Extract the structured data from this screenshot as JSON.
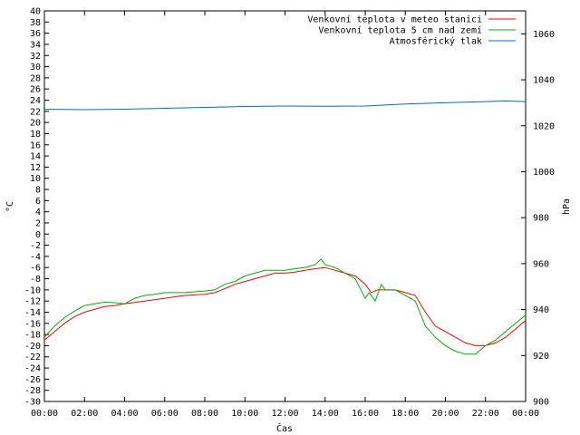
{
  "chart_data": {
    "type": "line",
    "title": "",
    "xlabel": "Čas",
    "ylabel_left": "°C",
    "ylabel_right": "hPa",
    "x_ticks": [
      "00:00",
      "02:00",
      "04:00",
      "06:00",
      "08:00",
      "10:00",
      "12:00",
      "14:00",
      "16:00",
      "18:00",
      "20:00",
      "22:00",
      "00:00"
    ],
    "xlim": [
      0,
      24
    ],
    "ylim_left": [
      -30,
      40
    ],
    "ylim_right": [
      900,
      1070
    ],
    "y_ticks_left": [
      40,
      38,
      36,
      34,
      32,
      30,
      28,
      26,
      24,
      22,
      20,
      18,
      16,
      14,
      12,
      10,
      8,
      6,
      4,
      2,
      0,
      -2,
      -4,
      -6,
      -8,
      -10,
      -12,
      -14,
      -16,
      -18,
      -20,
      -22,
      -24,
      -26,
      -28,
      -30
    ],
    "y_ticks_right": [
      1060,
      1040,
      1020,
      1000,
      980,
      960,
      940,
      920,
      900
    ],
    "grid": false,
    "legend_position": "top-right",
    "colors": {
      "series1": "#ff0000",
      "series2": "#00b000",
      "series3": "#0070c0"
    },
    "series": [
      {
        "name": "Venkovní teplota v meteo stanici",
        "axis": "left",
        "x": [
          0,
          0.5,
          1,
          1.5,
          2,
          2.5,
          3,
          3.5,
          4,
          5,
          6,
          7,
          8,
          8.5,
          9,
          9.5,
          10,
          10.5,
          11,
          11.5,
          12,
          12.5,
          13,
          13.5,
          14,
          14.5,
          15,
          15.5,
          16,
          16.3,
          16.6,
          17,
          17.5,
          18,
          18.5,
          19,
          19.5,
          20,
          20.5,
          21,
          21.5,
          22,
          22.5,
          23,
          23.5,
          24
        ],
        "y": [
          -19,
          -17.5,
          -16,
          -14.8,
          -14,
          -13.5,
          -13,
          -12.8,
          -12.5,
          -12,
          -11.5,
          -11,
          -10.8,
          -10.5,
          -9.8,
          -9,
          -8.5,
          -8,
          -7.5,
          -7,
          -7,
          -6.8,
          -6.5,
          -6.2,
          -6,
          -6.5,
          -7,
          -7.5,
          -9,
          -10.5,
          -10,
          -10,
          -10,
          -10.5,
          -11,
          -14,
          -16.5,
          -17.5,
          -18.5,
          -19.5,
          -20,
          -20,
          -19.5,
          -18.5,
          -17,
          -15.5
        ]
      },
      {
        "name": "Venkovní teplota 5 cm nad zemí",
        "axis": "left",
        "x": [
          0,
          0.5,
          1,
          1.5,
          2,
          2.5,
          3,
          3.5,
          4,
          4.5,
          5,
          5.5,
          6,
          7,
          8,
          8.5,
          9,
          9.5,
          10,
          10.5,
          11,
          11.5,
          12,
          12.5,
          13,
          13.5,
          13.8,
          14,
          14.5,
          15,
          15.5,
          16,
          16.2,
          16.5,
          16.8,
          17,
          17.5,
          18,
          18.5,
          19,
          19.5,
          20,
          20.5,
          21,
          21.5,
          22,
          22.5,
          23,
          23.5,
          24
        ],
        "y": [
          -18.5,
          -16.5,
          -15,
          -13.8,
          -12.8,
          -12.5,
          -12.2,
          -12.3,
          -12.5,
          -11.5,
          -11,
          -10.8,
          -10.5,
          -10.5,
          -10.2,
          -10,
          -9,
          -8.5,
          -7.5,
          -7,
          -6.5,
          -6.5,
          -6.5,
          -6.2,
          -6,
          -5.5,
          -4.5,
          -5.5,
          -6,
          -7,
          -8,
          -11.5,
          -10.5,
          -12,
          -9,
          -10,
          -10,
          -11,
          -12,
          -16.5,
          -18.5,
          -20,
          -21,
          -21.5,
          -21.5,
          -20,
          -19,
          -17.5,
          -16,
          -14.5
        ]
      },
      {
        "name": "Atmosférický tlak",
        "axis": "right",
        "x": [
          0,
          2,
          4,
          6,
          8,
          10,
          12,
          14,
          16,
          18,
          20,
          22,
          23,
          24
        ],
        "y": [
          1027.2,
          1027,
          1027.2,
          1027.6,
          1028,
          1028.4,
          1028.6,
          1028.5,
          1028.6,
          1029.5,
          1030,
          1030.5,
          1030.8,
          1030.5
        ]
      }
    ]
  }
}
